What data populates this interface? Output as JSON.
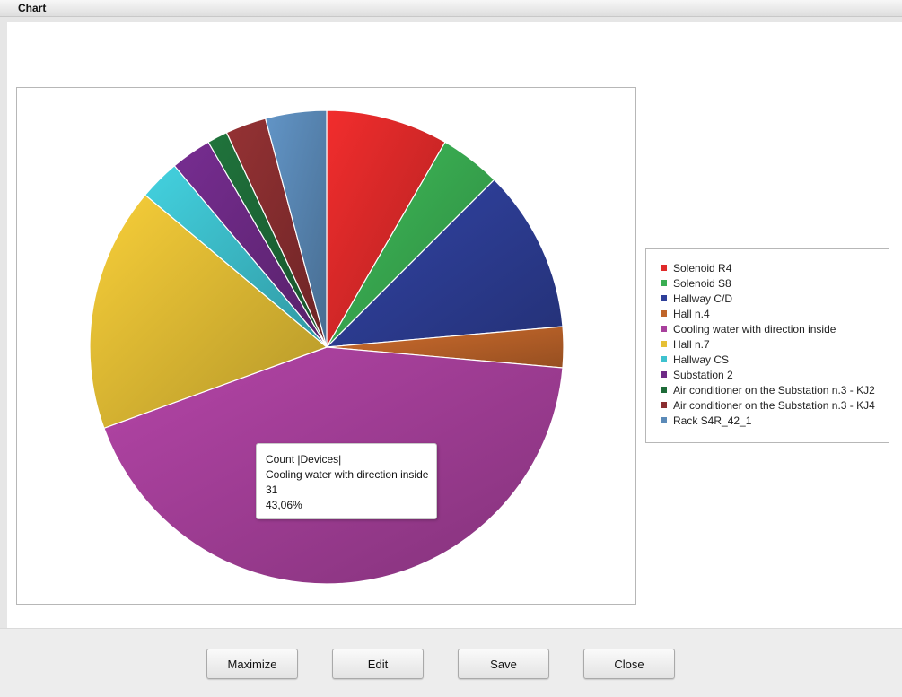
{
  "window": {
    "title": "Chart"
  },
  "tooltip": {
    "line1": "Count |Devices|",
    "line2": "Cooling water with direction inside",
    "line3": "31",
    "line4": "43,06%"
  },
  "buttons": {
    "maximize": "Maximize",
    "edit": "Edit",
    "save": "Save",
    "close": "Close"
  },
  "chart_data": {
    "type": "pie",
    "title": "",
    "series_name": "Count |Devices|",
    "start": "12 o'clock, clockwise",
    "categories": [
      "Solenoid R4",
      "Solenoid S8",
      "Hallway C/D",
      "Hall n.4",
      "Cooling water with direction inside",
      "Hall n.7",
      "Hallway CS",
      "Substation 2",
      "Air conditioner on the Substation n.3 - KJ2",
      "Air conditioner on the Substation n.3 - KJ4",
      "Rack S4R_42_1"
    ],
    "values": [
      6,
      3,
      8,
      2,
      31,
      12,
      2,
      2,
      1,
      2,
      3
    ],
    "colors": [
      "#e02a2a",
      "#3aae52",
      "#2e3f99",
      "#c0652a",
      "#a8409c",
      "#e6c035",
      "#3ec2cf",
      "#6e2a86",
      "#1e6b38",
      "#8a2e30",
      "#5b8ab8"
    ],
    "legend_position": "right",
    "highlighted": "Cooling water with direction inside"
  }
}
